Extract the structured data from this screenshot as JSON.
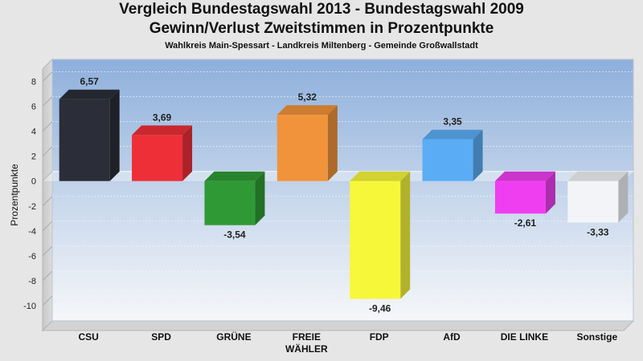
{
  "header": {
    "title_line1": "Vergleich Bundestagswahl 2013 - Bundestagswahl 2009",
    "title_line2": "Gewinn/Verlust Zweitstimmen in Prozentpunkte",
    "subtitle": "Wahlkreis Main-Spessart - Landkreis Miltenberg - Gemeinde Großwallstadt"
  },
  "chart_data": {
    "type": "bar",
    "title": "Vergleich Bundestagswahl 2013 - Bundestagswahl 2009 / Gewinn/Verlust Zweitstimmen in Prozentpunkte",
    "ylabel": "Prozentpunkte",
    "xlabel": "",
    "ylim": [
      -12,
      9
    ],
    "yticks": [
      8,
      6,
      4,
      2,
      0,
      -2,
      -4,
      -6,
      -8,
      -10
    ],
    "grid": true,
    "categories": [
      {
        "lines": [
          "CSU"
        ]
      },
      {
        "lines": [
          "SPD"
        ]
      },
      {
        "lines": [
          "GRÜNE"
        ]
      },
      {
        "lines": [
          "FREIE",
          "WÄHLER"
        ]
      },
      {
        "lines": [
          "FDP"
        ]
      },
      {
        "lines": [
          "AfD"
        ]
      },
      {
        "lines": [
          "DIE LINKE"
        ]
      },
      {
        "lines": [
          "Sonstige"
        ]
      }
    ],
    "values": [
      6.57,
      3.69,
      -3.54,
      5.32,
      -9.46,
      3.35,
      -2.61,
      -3.33
    ],
    "value_labels": [
      "6,57",
      "3,69",
      "-3,54",
      "5,32",
      "-9,46",
      "3,35",
      "-2,61",
      "-3,33"
    ],
    "colors": [
      "#2b2e38",
      "#ee2f38",
      "#2f9a35",
      "#f0933a",
      "#f7f73a",
      "#5aadf4",
      "#ef3ef0",
      "#f2f4f8"
    ]
  }
}
